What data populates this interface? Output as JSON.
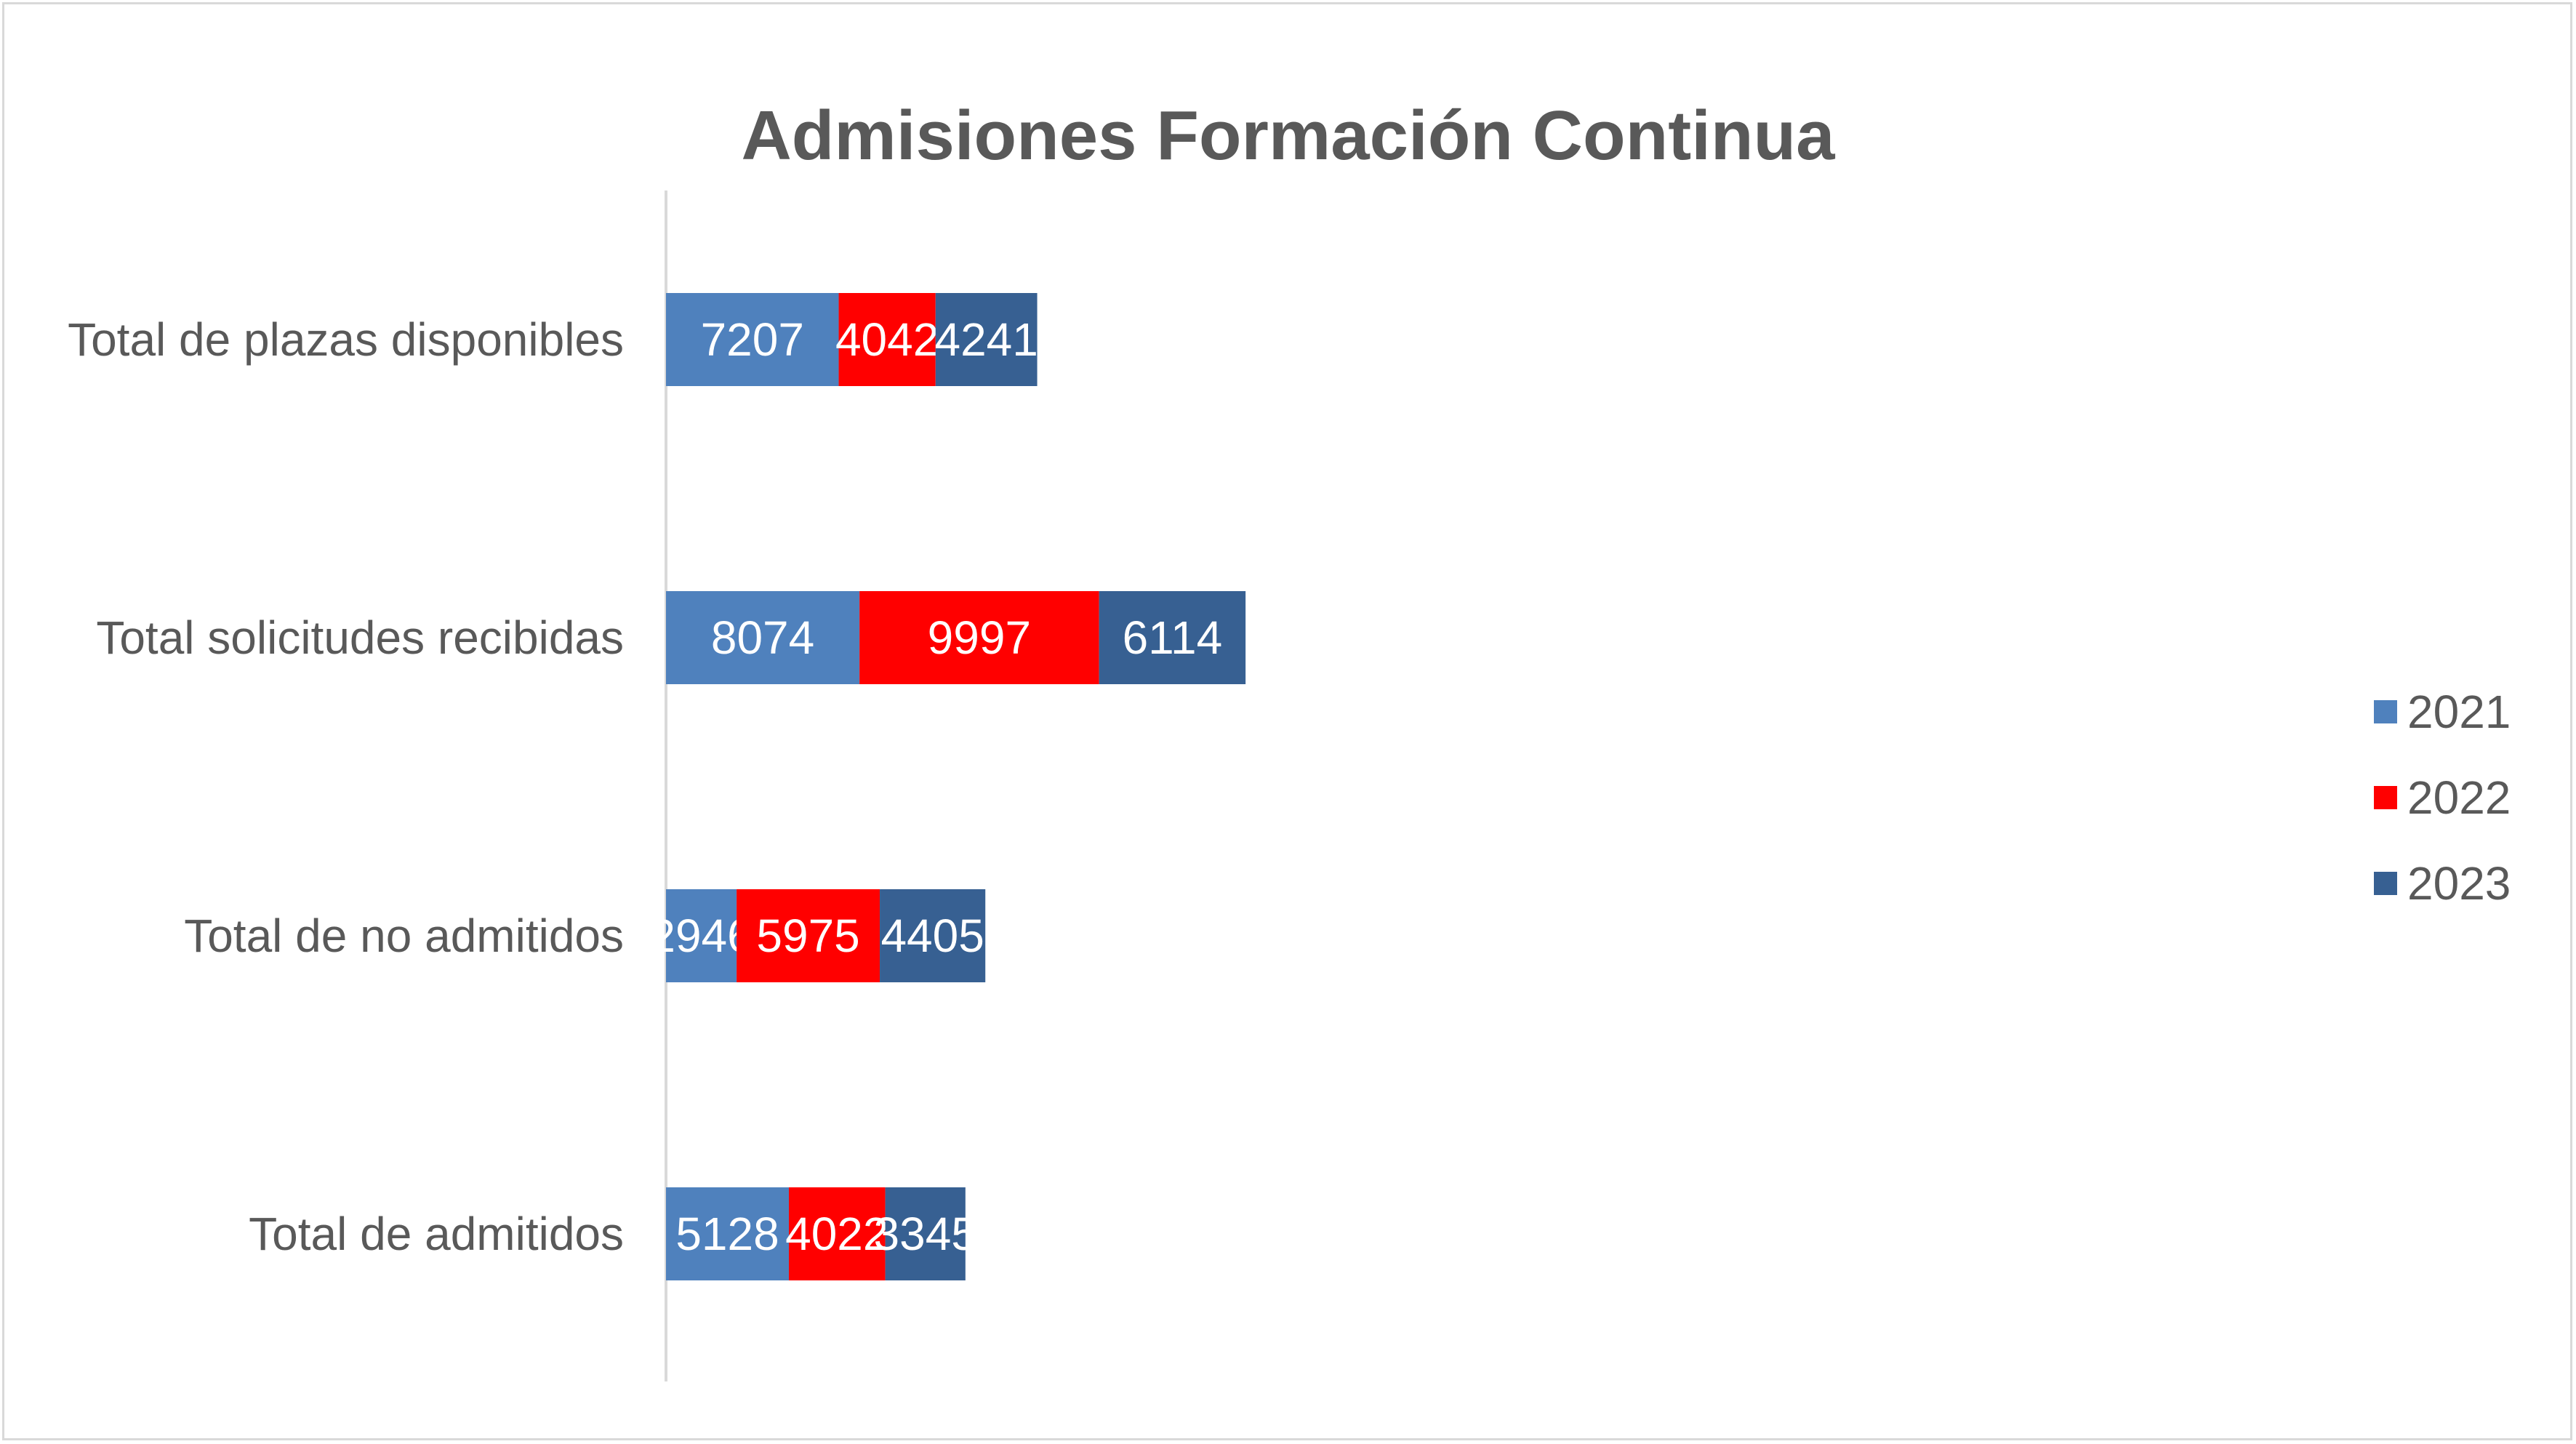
{
  "chart_data": {
    "type": "bar",
    "orientation": "horizontal",
    "stacked": true,
    "title": "Admisiones Formación Continua",
    "categories": [
      "Total de plazas disponibles",
      "Total solicitudes recibidas",
      "Total de no admitidos",
      "Total de admitidos"
    ],
    "series": [
      {
        "name": "2021",
        "color": "#4f81bd",
        "values": [
          7207,
          8074,
          2946,
          5128
        ]
      },
      {
        "name": "2022",
        "color": "#ff0000",
        "values": [
          4042,
          9997,
          5975,
          4022
        ]
      },
      {
        "name": "2023",
        "color": "#376092",
        "values": [
          4241,
          6114,
          4405,
          3345
        ]
      }
    ],
    "xlim": [
      0,
      40000
    ],
    "grid": false,
    "legend_position": "right",
    "axis_line_color": "#d9d9d9"
  }
}
